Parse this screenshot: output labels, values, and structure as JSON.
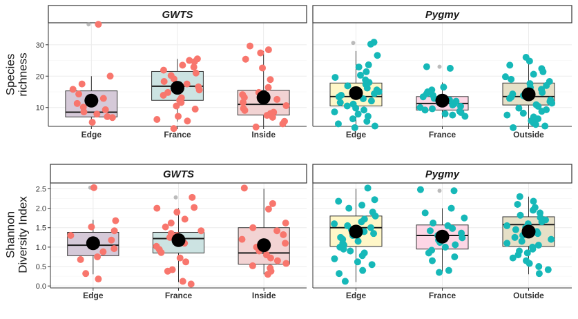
{
  "chart_data": [
    {
      "type": "box",
      "row": 0,
      "ylabel_lines": [
        "Species",
        "richness"
      ],
      "ylim": [
        4,
        37
      ],
      "yticks": [
        10,
        20,
        30
      ],
      "panels": [
        {
          "strip": "GWTS",
          "point_color": "#F8766D",
          "groups": [
            {
              "category": "Edge",
              "fill": "#D5C9D8",
              "q1": 7,
              "median": 8.5,
              "q3": 15.3,
              "whisker_low": 6,
              "whisker_high": 20,
              "mean": 12.2,
              "outliers": [
                36.5
              ],
              "points": [
                36.5,
                20,
                17.5,
                15.8,
                14.3,
                12.9,
                11.3,
                10.1,
                9.3,
                8.6,
                7.9,
                7.1,
                6.8,
                5.3
              ]
            },
            {
              "category": "France",
              "fill": "#CCE3E2",
              "q1": 12.3,
              "median": 16.8,
              "q3": 21.5,
              "whisker_low": 5.5,
              "whisker_high": 25.5,
              "mean": 16.3,
              "outliers": [],
              "points": [
                25.5,
                25,
                24.6,
                23.5,
                22.9,
                21.9,
                21,
                20.2,
                19.1,
                18.3,
                17.5,
                16.6,
                15.6,
                14.8,
                13.9,
                13.1,
                12.3,
                11.6,
                10.5,
                9.5,
                7.2,
                6.2,
                5.7,
                3.3
              ]
            },
            {
              "category": "Inside",
              "fill": "#F2D3D3",
              "q1": 7.6,
              "median": 11,
              "q3": 15.5,
              "whisker_low": 4,
              "whisker_high": 28,
              "mean": 13.2,
              "outliers": [],
              "points": [
                29.6,
                28.4,
                27.4,
                25.4,
                22.6,
                18.9,
                16.4,
                14.8,
                14.1,
                13.2,
                12.6,
                11.6,
                10.6,
                9.7,
                9.1,
                8.5,
                8.1,
                7.5,
                6.9,
                5.6,
                4.8,
                3.8
              ]
            }
          ]
        },
        {
          "strip": "Pygmy",
          "point_color": "#16B8B8",
          "groups": [
            {
              "category": "Edge",
              "fill": "#FFF7C8",
              "q1": 10.5,
              "median": 13.5,
              "q3": 17.8,
              "whisker_low": 4,
              "whisker_high": 28,
              "mean": 14.6,
              "outliers": [
                30.6
              ],
              "points": [
                30.8,
                30.2,
                26.6,
                23.6,
                22.9,
                21.4,
                20.3,
                19.6,
                18.8,
                18,
                17.4,
                16.9,
                16.2,
                15.6,
                15,
                14.4,
                13.9,
                13.4,
                12.8,
                12.1,
                11.6,
                11.1,
                10.5,
                9.8,
                9.2,
                8.6,
                7.9,
                7.2,
                6.4,
                5.6,
                4.8,
                4.1,
                3.6
              ]
            },
            {
              "category": "France",
              "fill": "#FDD6E5",
              "q1": 9.2,
              "median": 11.3,
              "q3": 13.5,
              "whisker_low": 6.5,
              "whisker_high": 18,
              "mean": 12.2,
              "outliers": [
                23
              ],
              "points": [
                23,
                22.5,
                16.5,
                15.6,
                15,
                14.4,
                13.9,
                13.4,
                12.9,
                12.4,
                12,
                11.6,
                11.2,
                10.8,
                10.4,
                10,
                9.6,
                9.2,
                8.8,
                8.4,
                8,
                7.6,
                7.2
              ]
            },
            {
              "category": "Outside",
              "fill": "#E6E0C7",
              "q1": 10.8,
              "median": 13.5,
              "q3": 17.8,
              "whisker_low": 4,
              "whisker_high": 25,
              "mean": 14.2,
              "outliers": [],
              "points": [
                26,
                24.8,
                23.5,
                22.4,
                21.4,
                20.6,
                19.8,
                19,
                18.3,
                17.6,
                17,
                16.4,
                15.8,
                15.3,
                14.8,
                14.3,
                13.8,
                13.3,
                12.9,
                12.4,
                11.9,
                11.4,
                10.9,
                10.4,
                9.8,
                9.3,
                8.8,
                8.2,
                7.6,
                7,
                6.4,
                5.8,
                5.2,
                4.6,
                4.1,
                3.6
              ]
            }
          ]
        }
      ]
    },
    {
      "type": "box",
      "row": 1,
      "ylabel_lines": [
        "Shannon",
        "Diversity Index"
      ],
      "ylim": [
        -0.05,
        2.65
      ],
      "yticks": [
        0.0,
        0.5,
        1.0,
        1.5,
        2.0,
        2.5
      ],
      "ytick_labels": [
        "0.0",
        "0.5",
        "1.0",
        "1.5",
        "2.0",
        "2.5"
      ],
      "panels": [
        {
          "strip": "GWTS",
          "point_color": "#F8766D",
          "groups": [
            {
              "category": "Edge",
              "fill": "#D5C9D8",
              "q1": 0.78,
              "median": 1.05,
              "q3": 1.38,
              "whisker_low": 0.3,
              "whisker_high": 1.7,
              "mean": 1.1,
              "outliers": [
                2.53
              ],
              "points": [
                2.53,
                1.68,
                1.52,
                1.42,
                1.3,
                1.18,
                1.06,
                0.96,
                0.88,
                0.75,
                0.68,
                0.32,
                0.18
              ]
            },
            {
              "category": "France",
              "fill": "#CCE3E2",
              "q1": 0.85,
              "median": 1.22,
              "q3": 1.38,
              "whisker_low": 0.1,
              "whisker_high": 2.0,
              "mean": 1.18,
              "outliers": [
                2.28
              ],
              "points": [
                2.28,
                2.02,
                2.0,
                1.9,
                1.72,
                1.62,
                1.52,
                1.42,
                1.35,
                1.3,
                1.25,
                1.18,
                1.1,
                1.02,
                0.94,
                0.86,
                0.72,
                0.62,
                0.42,
                0.38,
                0.12,
                0.05
              ]
            },
            {
              "category": "Inside",
              "fill": "#F2D3D3",
              "q1": 0.56,
              "median": 0.85,
              "q3": 1.5,
              "whisker_low": 0.3,
              "whisker_high": 2.5,
              "mean": 1.05,
              "outliers": [],
              "points": [
                2.52,
                2.12,
                1.98,
                1.62,
                1.5,
                1.42,
                1.32,
                1.2,
                1.1,
                1.0,
                0.9,
                0.8,
                0.72,
                0.65,
                0.58,
                0.52,
                0.46,
                0.38,
                0.3
              ]
            }
          ]
        },
        {
          "strip": "Pygmy",
          "point_color": "#16B8B8",
          "groups": [
            {
              "category": "Edge",
              "fill": "#FFF7C8",
              "q1": 1.02,
              "median": 1.5,
              "q3": 1.8,
              "whisker_low": 0.1,
              "whisker_high": 2.5,
              "mean": 1.4,
              "outliers": [],
              "points": [
                2.52,
                2.22,
                2.18,
                2.08,
                2.0,
                1.9,
                1.8,
                1.72,
                1.65,
                1.6,
                1.55,
                1.5,
                1.45,
                1.4,
                1.35,
                1.3,
                1.25,
                1.2,
                1.15,
                1.1,
                1.05,
                1.0,
                0.95,
                0.9,
                0.85,
                0.78,
                0.7,
                0.62,
                0.55,
                0.4,
                0.32,
                0.12
              ]
            },
            {
              "category": "France",
              "fill": "#FDD6E5",
              "q1": 0.95,
              "median": 1.3,
              "q3": 1.57,
              "whisker_low": 0.35,
              "whisker_high": 2.0,
              "mean": 1.27,
              "outliers": [
                2.45
              ],
              "points": [
                2.48,
                2.45,
                2.0,
                1.88,
                1.75,
                1.62,
                1.55,
                1.48,
                1.42,
                1.36,
                1.3,
                1.24,
                1.18,
                1.12,
                1.06,
                1.0,
                0.92,
                0.85,
                0.75,
                0.65,
                0.4,
                0.35
              ]
            },
            {
              "category": "Outside",
              "fill": "#E6E0C7",
              "q1": 1.02,
              "median": 1.58,
              "q3": 1.78,
              "whisker_low": 0.3,
              "whisker_high": 2.3,
              "mean": 1.4,
              "outliers": [],
              "points": [
                2.3,
                2.18,
                2.1,
                2.02,
                1.95,
                1.88,
                1.82,
                1.76,
                1.7,
                1.65,
                1.6,
                1.55,
                1.5,
                1.45,
                1.4,
                1.35,
                1.3,
                1.25,
                1.2,
                1.15,
                1.1,
                1.05,
                1.0,
                0.95,
                0.9,
                0.85,
                0.8,
                0.72,
                0.65,
                0.58,
                0.5,
                0.42,
                0.32
              ]
            }
          ]
        }
      ]
    }
  ]
}
